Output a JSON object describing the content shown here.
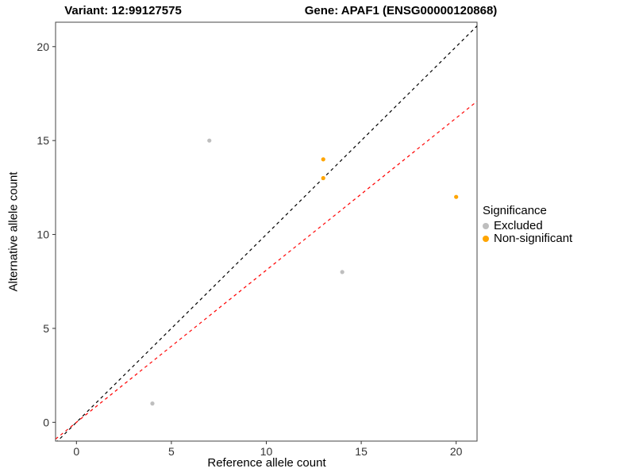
{
  "titles": {
    "left": "Variant: 12:99127575",
    "right": "Gene: APAF1 (ENSG00000120868)"
  },
  "legend": {
    "title": "Significance",
    "items": [
      {
        "label": "Excluded",
        "color": "#bebebe"
      },
      {
        "label": "Non-significant",
        "color": "#ffa500"
      }
    ]
  },
  "chart_data": {
    "type": "scatter",
    "title": "Variant: 12:99127575 / Gene: APAF1 (ENSG00000120868)",
    "xlabel": "Reference allele count",
    "ylabel": "Alternative allele count",
    "xlim": [
      -1.1,
      21.1
    ],
    "ylim": [
      -1.0,
      21.3
    ],
    "xticks": [
      0,
      5,
      10,
      15,
      20
    ],
    "yticks": [
      0,
      5,
      10,
      15,
      20
    ],
    "grid": false,
    "legend_position": "right",
    "points": [
      {
        "x": 4,
        "y": 1,
        "significance": "Excluded"
      },
      {
        "x": 7,
        "y": 15,
        "significance": "Excluded"
      },
      {
        "x": 14,
        "y": 8,
        "significance": "Excluded"
      },
      {
        "x": 13,
        "y": 13,
        "significance": "Non-significant"
      },
      {
        "x": 13,
        "y": 14,
        "significance": "Non-significant"
      },
      {
        "x": 20,
        "y": 12,
        "significance": "Non-significant"
      }
    ],
    "lines": [
      {
        "name": "identity",
        "slope": 1.0,
        "intercept": 0,
        "color": "#000000",
        "style": "dashed"
      },
      {
        "name": "threshold",
        "slope": 0.81,
        "intercept": 0,
        "color": "#ff0000",
        "style": "dashed"
      }
    ]
  }
}
